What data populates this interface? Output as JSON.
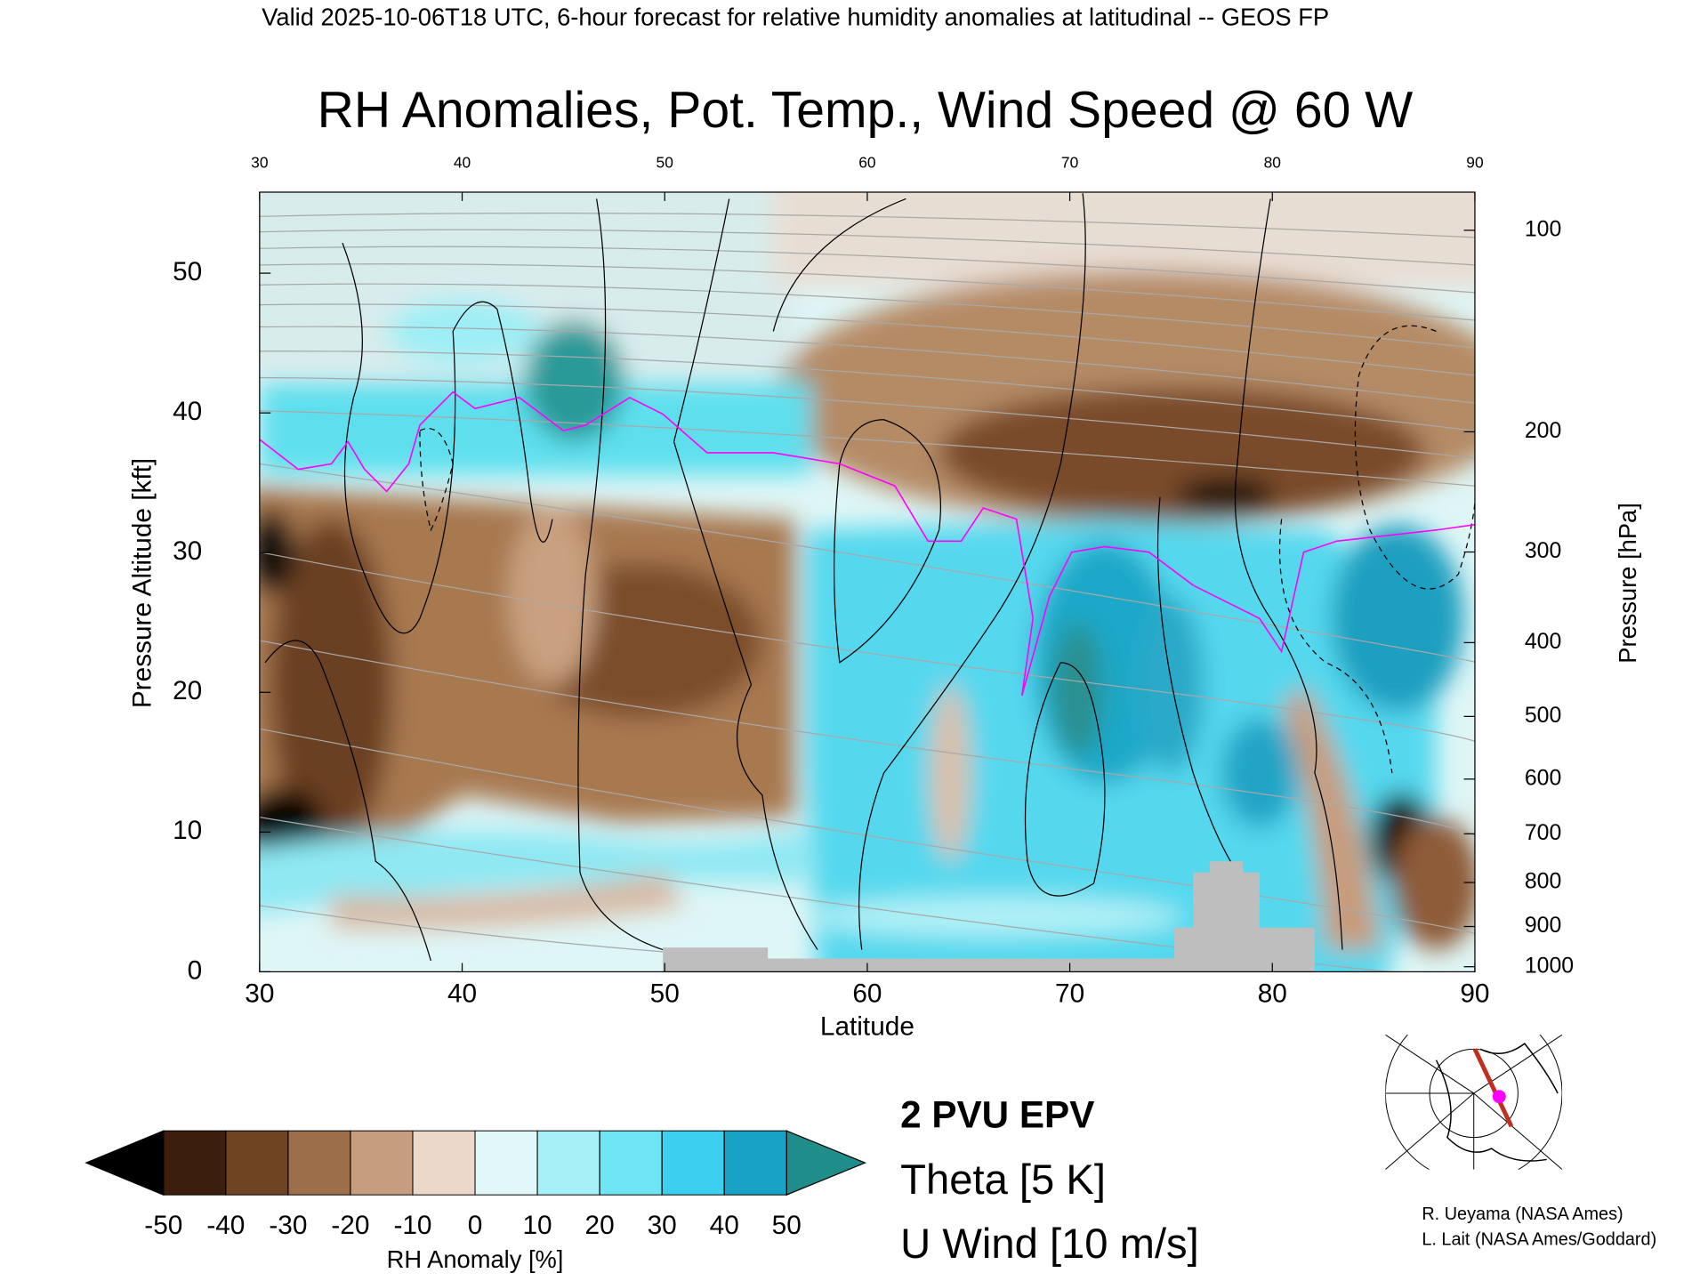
{
  "subtitle": "Valid 2025-10-06T18 UTC, 6-hour forecast for relative humidity anomalies at latitudinal -- GEOS FP",
  "chart_data": {
    "type": "contour",
    "title": "RH Anomalies, Pot. Temp., Wind Speed @ 60 W",
    "xlabel": "Latitude",
    "ylabel": "Pressure Altitude [kft]",
    "y2label": "Pressure [hPa]",
    "xlim": [
      30,
      90
    ],
    "xticks": [
      30,
      40,
      50,
      60,
      70,
      80,
      90
    ],
    "x2ticks": [
      30,
      40,
      50,
      60,
      70,
      80,
      90
    ],
    "ylim": [
      0,
      55.8
    ],
    "yticks": [
      0,
      10,
      20,
      30,
      40,
      50
    ],
    "y2lim": [
      1013.25,
      87.7
    ],
    "y2scale": "pressure-altitude",
    "y2ticks": [
      1000,
      900,
      800,
      700,
      600,
      500,
      400,
      300,
      200,
      100
    ],
    "colorbar": {
      "label": "RH Anomaly [%]",
      "ticks": [
        -50,
        -40,
        -30,
        -20,
        -10,
        0,
        10,
        20,
        30,
        40,
        50
      ],
      "colors": [
        "#000000",
        "#3b1f0c",
        "#6e4423",
        "#9c6e4a",
        "#c69d7d",
        "#ecd8ca",
        "#e2f8f8",
        "#a6f0f7",
        "#6fe5f4",
        "#3ccfee",
        "#17a2c6",
        "#1f8e8a"
      ]
    },
    "legend": [
      {
        "name": "2 PVU EPV",
        "color": "#ff00ff"
      },
      {
        "name": "Theta [5 K]",
        "color": "#b4b4b4"
      },
      {
        "name": "U Wind [10 m/s]",
        "color": "#000000"
      }
    ]
  },
  "credits": [
    "R. Ueyama (NASA Ames)",
    "L. Lait (NASA Ames/Goddard)"
  ]
}
